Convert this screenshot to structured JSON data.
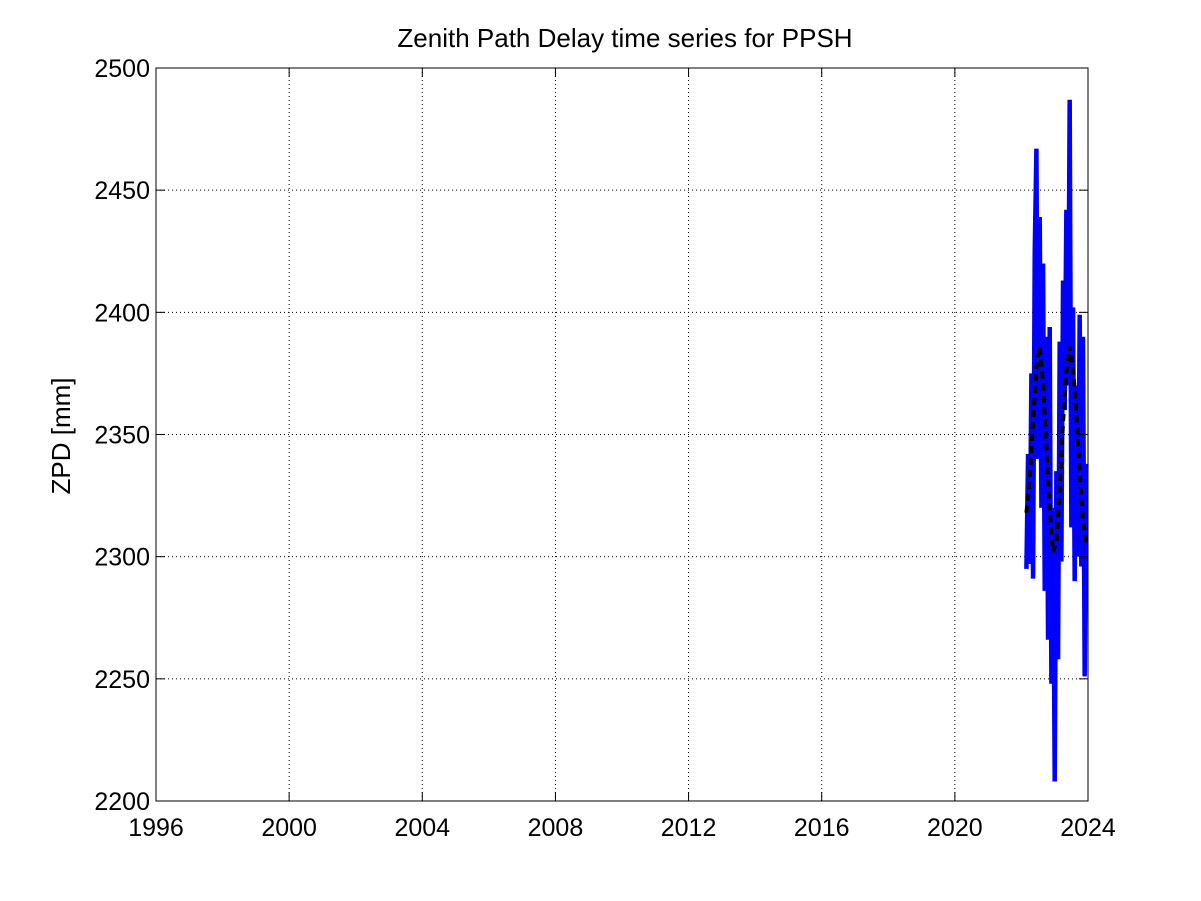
{
  "chart_data": {
    "type": "line",
    "title": "Zenith Path Delay time series for PPSH",
    "xlabel": "",
    "ylabel": "ZPD [mm]",
    "xlim": [
      1996,
      2024
    ],
    "ylim": [
      2200,
      2500
    ],
    "x_ticks": [
      1996,
      2000,
      2004,
      2008,
      2012,
      2016,
      2020,
      2024
    ],
    "y_ticks": [
      2200,
      2250,
      2300,
      2350,
      2400,
      2450,
      2500
    ],
    "grid": true,
    "series": [
      {
        "color": "#0000ff",
        "style": "solid",
        "x": [
          2022.15,
          2022.2,
          2022.25,
          2022.3,
          2022.35,
          2022.4,
          2022.45,
          2022.5,
          2022.55,
          2022.6,
          2022.65,
          2022.7,
          2022.75,
          2022.8,
          2022.85,
          2022.9,
          2022.95,
          2023.0,
          2023.05,
          2023.1,
          2023.15,
          2023.2,
          2023.25,
          2023.3,
          2023.35,
          2023.4,
          2023.45,
          2023.5,
          2023.55,
          2023.6,
          2023.65,
          2023.7,
          2023.75,
          2023.8,
          2023.85,
          2023.9,
          2023.95
        ],
        "y": [
          2295,
          2342,
          2297,
          2375,
          2291,
          2425,
          2467,
          2340,
          2439,
          2320,
          2420,
          2286,
          2390,
          2266,
          2394,
          2248,
          2320,
          2208,
          2335,
          2258,
          2388,
          2298,
          2413,
          2360,
          2442,
          2370,
          2487,
          2312,
          2402,
          2290,
          2370,
          2300,
          2399,
          2296,
          2390,
          2251,
          2338
        ]
      },
      {
        "color": "#000000",
        "style": "dashed",
        "x": [
          2022.15,
          2022.25,
          2022.35,
          2022.45,
          2022.55,
          2022.65,
          2022.75,
          2022.85,
          2022.95,
          2023.05,
          2023.15,
          2023.25,
          2023.35,
          2023.45,
          2023.55,
          2023.65,
          2023.75,
          2023.85,
          2023.95
        ],
        "y": [
          2318,
          2332,
          2355,
          2378,
          2386,
          2370,
          2345,
          2318,
          2302,
          2306,
          2328,
          2355,
          2376,
          2386,
          2378,
          2358,
          2335,
          2315,
          2305
        ]
      }
    ]
  }
}
